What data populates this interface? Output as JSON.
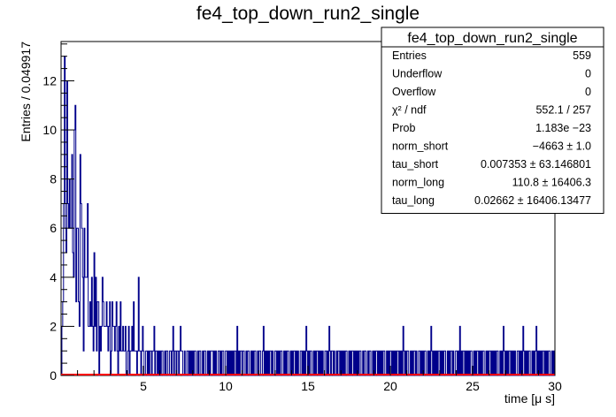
{
  "chart_data": {
    "type": "bar",
    "title": "fe4_top_down_run2_single",
    "xlabel": "time [μ s]",
    "ylabel": "Entries / 0.049917",
    "xlim": [
      0.0,
      30.0
    ],
    "ylim": [
      0,
      13.6
    ],
    "x_ticks": [
      5,
      10,
      15,
      20,
      25,
      30
    ],
    "y_ticks": [
      0,
      2,
      4,
      6,
      8,
      10,
      12
    ],
    "bin_width": 0.049917,
    "histogram": {
      "color": "#00008b",
      "counts": [
        0,
        2,
        3,
        7,
        13,
        6,
        5,
        12,
        7,
        6,
        8,
        6,
        6,
        9,
        5,
        4,
        10,
        11,
        3,
        6,
        6,
        3,
        2,
        9,
        7,
        6,
        4,
        1,
        6,
        4,
        4,
        4,
        7,
        2,
        2,
        3,
        2,
        4,
        2,
        1,
        5,
        2,
        4,
        1,
        3,
        3,
        0,
        2,
        1,
        2,
        4,
        3,
        2,
        2,
        2,
        3,
        2,
        1,
        2,
        3,
        0,
        1,
        3,
        2,
        2,
        1,
        2,
        3,
        1,
        0,
        2,
        1,
        3,
        1,
        1,
        2,
        1,
        1,
        2,
        0,
        0,
        1,
        2,
        0,
        1,
        1,
        2,
        1,
        3,
        1,
        1,
        1,
        0,
        1,
        4,
        1,
        1,
        0,
        1,
        2,
        1,
        0,
        0,
        1,
        1,
        0,
        1,
        0,
        1,
        1,
        0,
        1,
        1,
        2,
        0,
        1,
        1,
        0,
        1,
        0,
        1,
        0,
        1,
        1,
        0,
        0,
        1,
        0,
        1,
        1,
        0,
        0,
        1,
        1,
        0,
        1,
        2,
        0,
        1,
        1,
        0,
        1,
        1,
        0,
        1,
        2,
        1,
        1,
        0,
        0,
        1,
        0,
        0,
        1,
        1,
        0,
        1,
        0,
        1,
        0,
        1,
        0,
        1,
        1,
        0,
        0,
        1,
        0,
        1,
        1,
        0,
        0,
        1,
        0,
        1,
        1,
        0,
        0,
        1,
        0,
        1,
        0,
        1,
        1,
        1,
        0,
        1,
        0,
        1,
        0,
        0,
        1,
        1,
        0,
        1,
        0,
        1,
        1,
        0,
        0,
        1,
        1,
        0,
        1,
        0,
        1,
        0,
        1,
        0,
        1,
        0,
        1,
        1,
        0,
        2,
        0,
        1,
        0,
        1,
        1,
        0,
        1,
        1,
        0,
        0,
        1,
        0,
        1,
        1,
        0,
        0,
        1,
        0,
        1,
        0,
        1,
        1,
        0,
        0,
        1,
        0,
        1,
        1,
        0,
        0,
        1,
        2,
        0,
        1,
        0,
        1,
        0,
        1,
        0,
        1,
        1,
        0,
        1,
        0,
        0,
        1,
        1,
        0,
        1,
        0,
        1,
        0,
        1,
        1,
        0,
        0,
        1,
        0,
        1,
        0,
        1,
        1,
        0,
        0,
        1,
        0,
        1,
        0,
        1,
        1,
        0,
        1,
        0,
        1,
        0,
        0,
        1,
        1,
        0,
        1,
        0,
        1,
        0,
        2,
        1,
        0,
        1,
        0,
        1,
        1,
        0,
        0,
        1,
        0,
        1,
        0,
        1,
        1,
        0,
        1,
        0,
        1,
        0,
        1,
        0,
        0,
        1,
        1,
        0,
        1,
        0,
        2,
        1,
        0,
        1,
        1,
        0,
        1,
        0,
        0,
        1,
        0,
        1,
        1,
        0,
        1,
        0,
        1,
        0,
        1,
        0,
        1,
        1,
        0,
        0,
        1,
        0,
        1,
        0,
        1,
        1,
        0,
        1,
        0,
        1,
        0,
        1,
        0,
        1,
        1,
        0,
        0,
        1,
        0,
        1,
        1,
        0,
        0,
        1,
        0,
        1,
        1,
        0,
        0,
        1,
        0,
        1,
        0,
        1,
        1,
        0,
        1,
        0,
        1,
        0,
        1,
        0,
        1,
        1,
        0,
        0,
        1,
        0,
        1,
        0,
        1,
        1,
        0,
        1,
        0,
        1,
        0,
        1,
        0,
        1,
        1,
        0,
        1,
        0,
        1,
        0,
        2,
        1,
        0,
        1,
        0,
        1,
        1,
        0,
        0,
        1,
        0,
        1,
        0,
        1,
        1,
        0,
        1,
        0,
        0,
        1,
        1,
        0,
        1,
        0,
        1,
        0,
        1,
        1,
        0,
        0,
        1,
        0,
        1,
        0,
        2,
        1,
        0,
        1,
        0,
        1,
        0,
        1,
        0,
        1,
        1,
        0,
        1,
        0,
        1,
        0,
        1,
        1,
        0,
        0,
        1,
        0,
        1,
        0,
        1,
        1,
        0,
        1,
        0,
        0,
        1,
        1,
        0,
        1,
        0,
        2,
        0,
        1,
        0,
        1,
        1,
        0,
        1,
        0,
        1,
        0,
        1,
        0,
        1,
        1,
        0,
        0,
        1,
        0,
        1,
        0,
        1,
        1,
        0,
        1,
        0,
        1,
        0,
        1,
        1,
        0,
        0,
        1,
        0,
        1,
        0,
        1,
        1,
        0,
        1,
        0,
        1,
        0,
        1,
        0,
        1,
        1,
        0,
        0,
        1,
        0,
        1,
        0,
        2,
        1,
        0,
        1,
        0,
        1,
        0,
        1,
        1,
        0,
        1,
        0,
        1,
        0,
        1,
        0,
        0,
        1,
        1,
        0,
        1,
        0,
        1,
        0,
        2,
        1,
        0,
        1,
        0,
        1,
        0,
        1,
        1,
        0,
        0,
        1,
        0,
        1,
        0,
        1,
        2,
        0,
        1,
        0,
        1,
        0,
        1,
        0,
        1,
        1,
        0,
        1,
        0,
        1,
        0,
        1,
        1,
        0,
        0,
        1,
        0,
        1,
        0,
        1,
        1,
        0,
        2,
        0,
        1,
        0,
        1,
        0,
        1,
        1,
        0,
        1,
        0,
        1,
        0,
        1
      ]
    },
    "fit_line": {
      "color": "#ff0000",
      "y": [
        0,
        0
      ]
    },
    "stats_box": {
      "title": "fe4_top_down_run2_single",
      "rows": [
        {
          "label": "Entries",
          "value": "559"
        },
        {
          "label": "Underflow",
          "value": "0"
        },
        {
          "label": "Overflow",
          "value": "0"
        },
        {
          "label": "χ² / ndf",
          "value": "552.1 / 257"
        },
        {
          "label": "Prob",
          "value": "1.183e −23"
        },
        {
          "label": "norm_short",
          "value": "−4663 ± 1.0"
        },
        {
          "label": "tau_short",
          "value": "0.007353 ± 63.146801"
        },
        {
          "label": "norm_long",
          "value": "110.8 ± 16406.3"
        },
        {
          "label": "tau_long",
          "value": "0.02662 ± 16406.13477"
        }
      ]
    }
  }
}
